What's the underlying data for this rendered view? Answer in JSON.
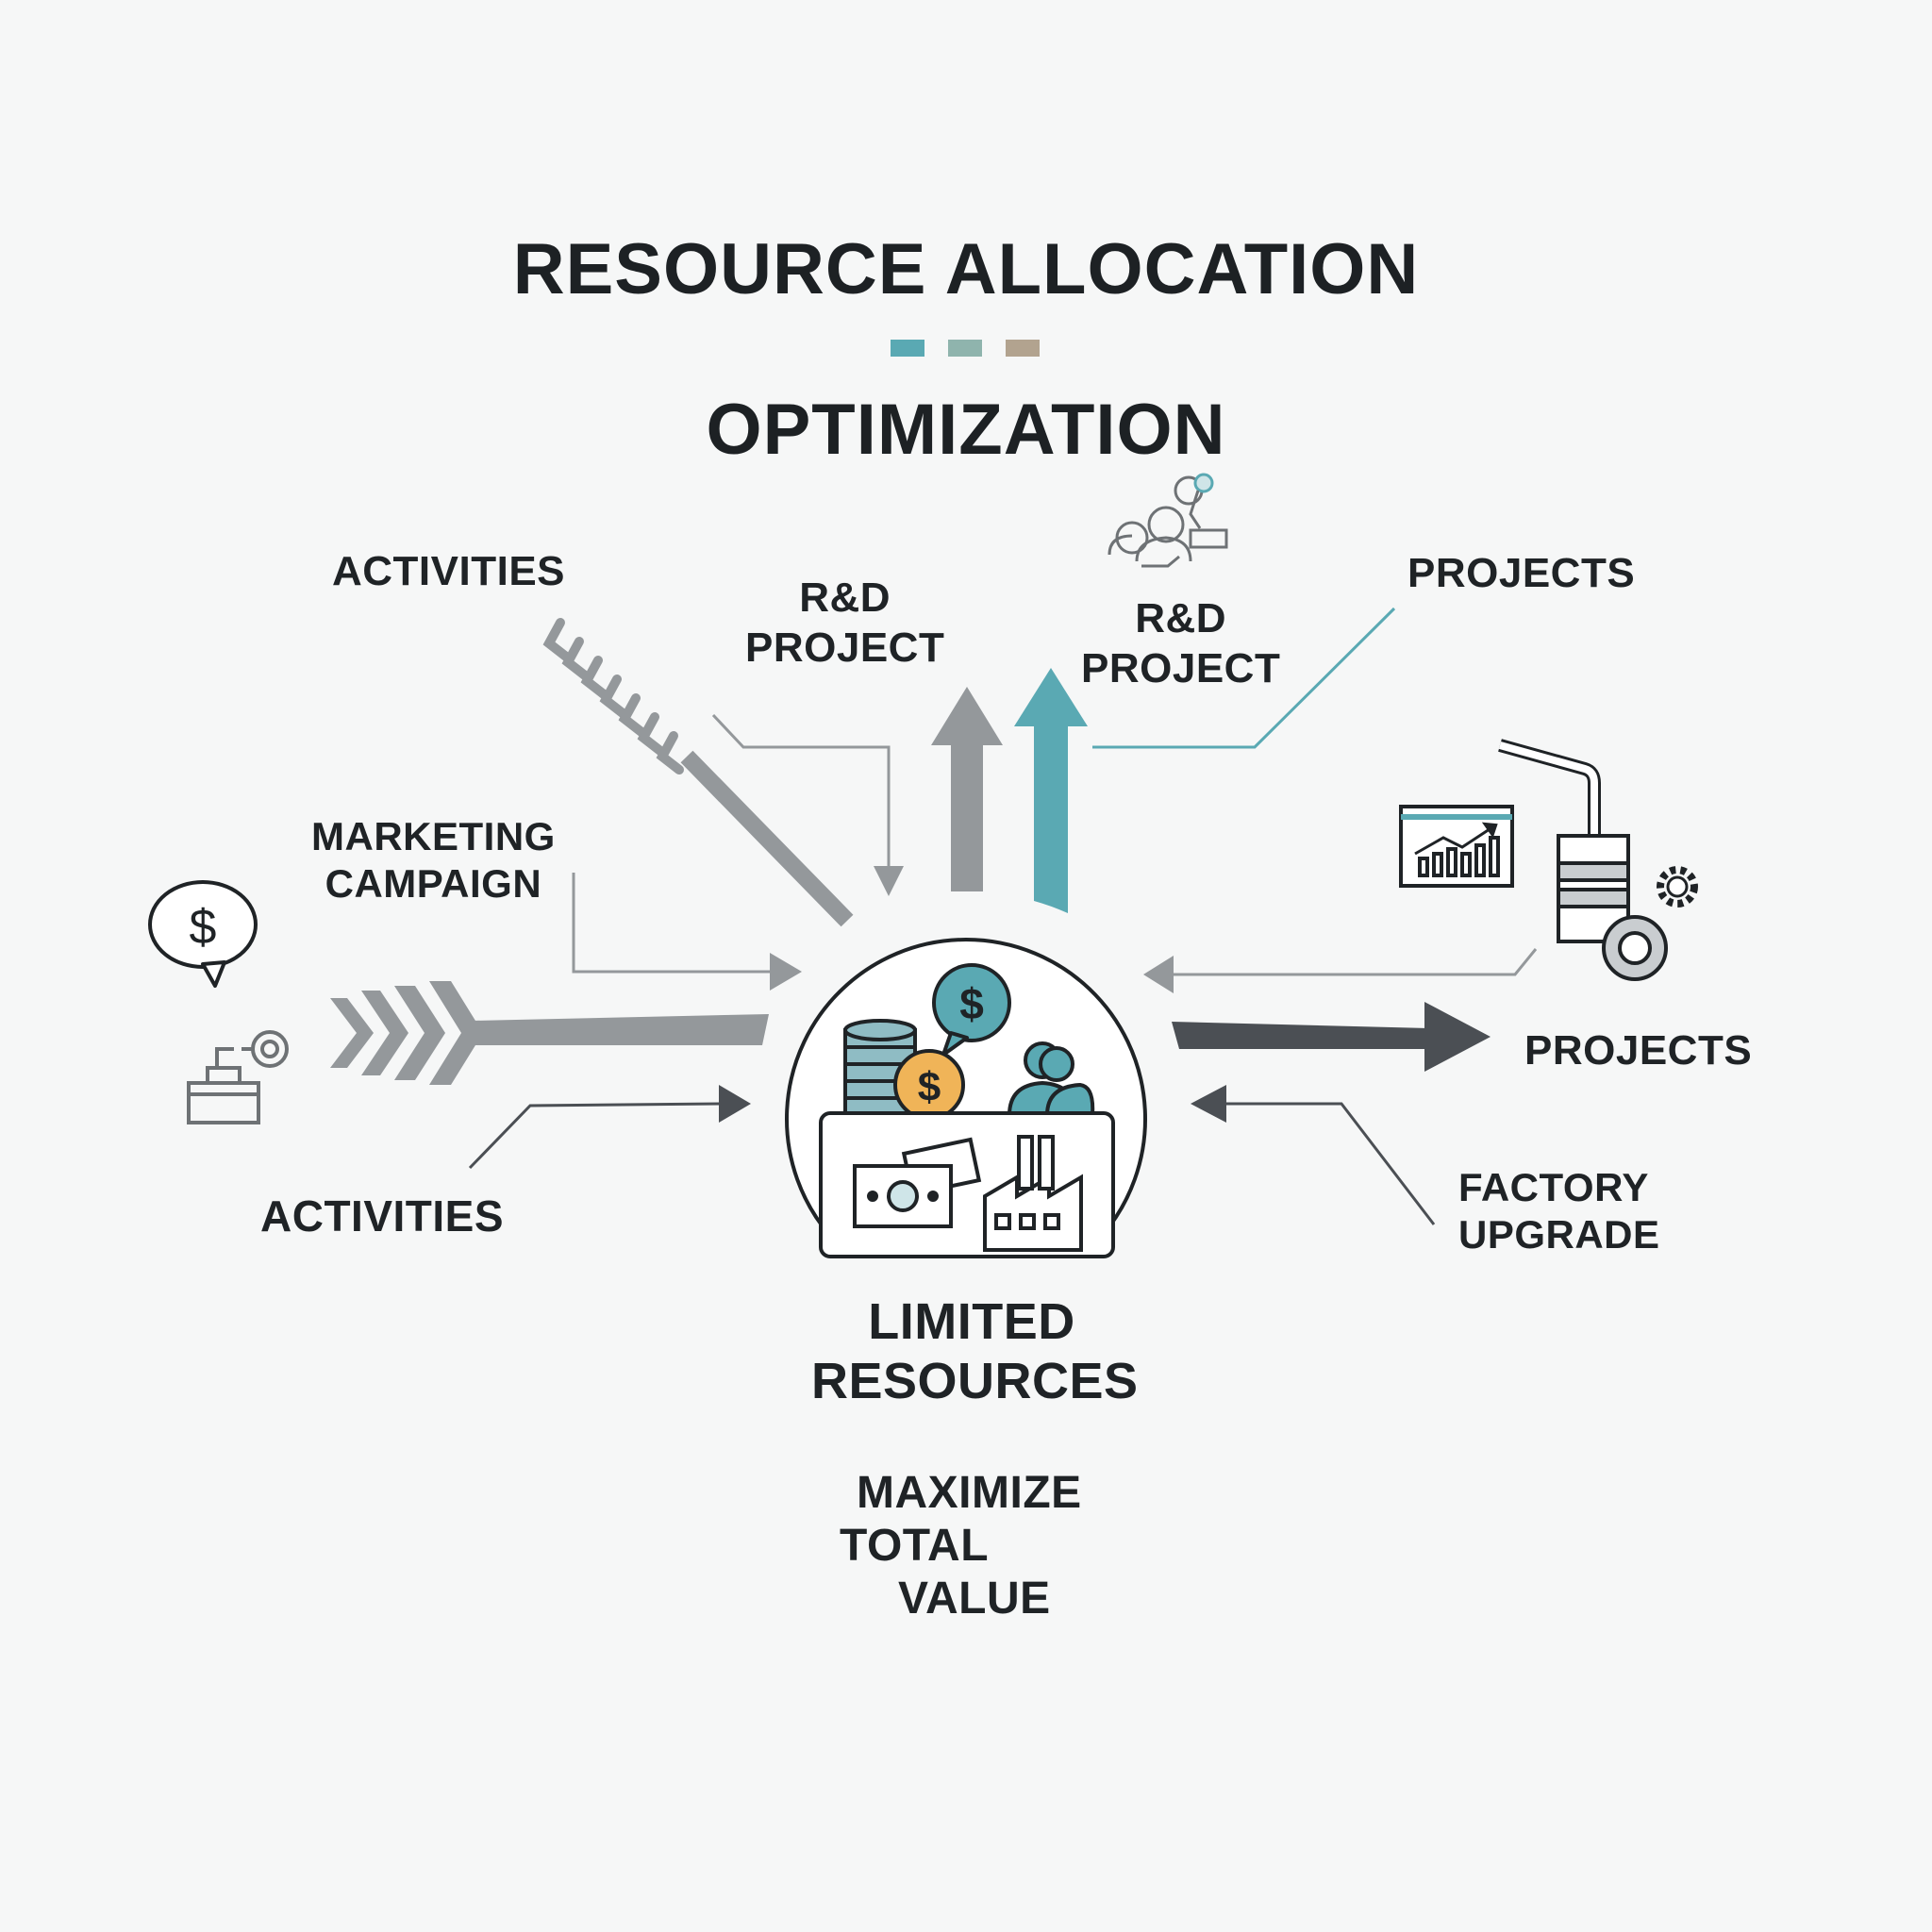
{
  "title": {
    "line1": "RESOURCE ALLOCATION",
    "line2": "OPTIMIZATION"
  },
  "colors": {
    "teal": "#5aa9b3",
    "sage": "#8fb4ad",
    "taupe": "#b2a38f",
    "gray_arrow": "#94989b",
    "dark_arrow": "#4b4f54",
    "outline": "#1f2326",
    "coin_orange": "#f0b458"
  },
  "labels": {
    "activities_top": "ACTIVITIES",
    "rd_project_left": "R&D\nPROJECT",
    "rd_project_right": "R&D\nPROJECT",
    "projects_top": "PROJECTS",
    "marketing_campaign": "MARKETING\nCAMPAIGN",
    "projects_right": "PROJECTS",
    "activities_bottom": "ACTIVITIES",
    "factory_upgrade": "FACTORY\nUPGRADE",
    "limited_resources": "LIMITED\nRESOURCES",
    "maximize_1": "MAXIMIZE",
    "maximize_2": "TOTAL",
    "maximize_3": "VALUE"
  },
  "icons": [
    "dollar-speech-bubble-icon",
    "machine-icon",
    "team-research-icon",
    "growth-chart-icon",
    "factory-pipe-icon",
    "gear-icon",
    "coin-stack-icon",
    "banknote-icon",
    "factory-icon",
    "people-icon"
  ]
}
